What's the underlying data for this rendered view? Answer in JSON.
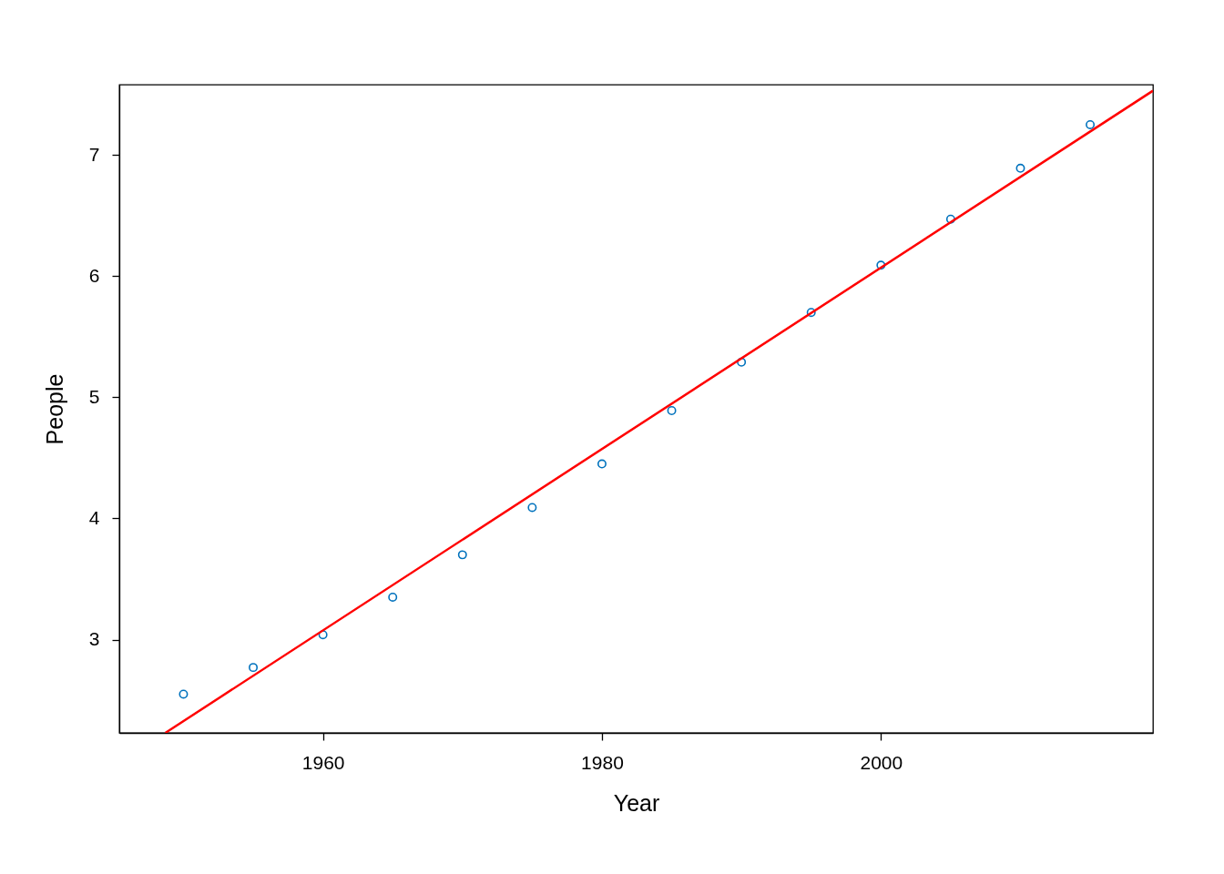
{
  "chart_data": {
    "type": "scatter",
    "xlabel": "Year",
    "ylabel": "People",
    "xlim": [
      1945.4,
      2019.5
    ],
    "ylim": [
      2.23,
      7.58
    ],
    "xticks": [
      1960,
      1980,
      2000
    ],
    "yticks": [
      3,
      4,
      5,
      6,
      7
    ],
    "grid": false,
    "marker": "circle",
    "series": [
      {
        "color": "#0072bd",
        "x": [
          1950,
          1955,
          1960,
          1965,
          1970,
          1975,
          1980,
          1985,
          1990,
          1995,
          2000,
          2005,
          2010,
          2015
        ],
        "values": [
          2.55,
          2.77,
          3.04,
          3.35,
          3.7,
          4.09,
          4.45,
          4.89,
          5.29,
          5.7,
          6.09,
          6.47,
          6.89,
          7.25
        ]
      },
      {
        "type": "line",
        "color": "#ff0000",
        "line_style": "solid",
        "marker": "none",
        "x": [
          1948.7,
          2019.5
        ],
        "values": [
          2.23,
          7.53
        ]
      }
    ]
  }
}
